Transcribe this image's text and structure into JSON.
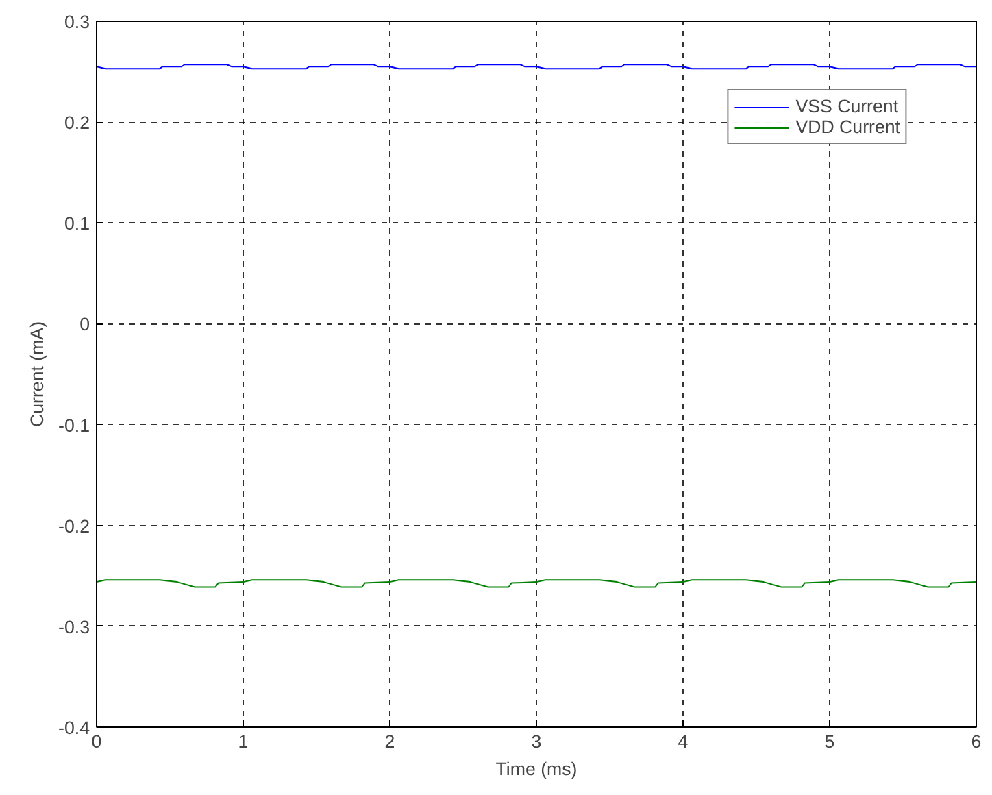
{
  "chart_data": {
    "type": "line",
    "xlabel": "Time (ms)",
    "ylabel": "Current (mA)",
    "xlim": [
      0,
      6
    ],
    "ylim": [
      -0.4,
      0.3
    ],
    "xticks": [
      0,
      1,
      2,
      3,
      4,
      5,
      6
    ],
    "yticks": [
      -0.4,
      -0.3,
      -0.2,
      -0.1,
      0,
      0.1,
      0.2,
      0.3
    ],
    "grid": true,
    "legend": "top right",
    "line_style": "solid",
    "series": [
      {
        "name": "VSS Current",
        "color": "#0000ff",
        "x": [
          0,
          0.06,
          0.43,
          0.45,
          0.58,
          0.6,
          0.89,
          0.92,
          1,
          1.06,
          1.43,
          1.45,
          1.58,
          1.6,
          1.89,
          1.92,
          2,
          2.06,
          2.43,
          2.45,
          2.58,
          2.6,
          2.89,
          2.92,
          3,
          3.06,
          3.43,
          3.45,
          3.58,
          3.6,
          3.89,
          3.92,
          4,
          4.06,
          4.43,
          4.45,
          4.58,
          4.6,
          4.89,
          4.92,
          5,
          5.06,
          5.43,
          5.45,
          5.58,
          5.6,
          5.89,
          5.92,
          6
        ],
        "values": [
          0.255,
          0.253,
          0.253,
          0.255,
          0.255,
          0.257,
          0.257,
          0.255,
          0.255,
          0.253,
          0.253,
          0.255,
          0.255,
          0.257,
          0.257,
          0.255,
          0.255,
          0.253,
          0.253,
          0.255,
          0.255,
          0.257,
          0.257,
          0.255,
          0.255,
          0.253,
          0.253,
          0.255,
          0.255,
          0.257,
          0.257,
          0.255,
          0.255,
          0.253,
          0.253,
          0.255,
          0.255,
          0.257,
          0.257,
          0.255,
          0.255,
          0.253,
          0.253,
          0.255,
          0.255,
          0.257,
          0.257,
          0.255,
          0.255
        ]
      },
      {
        "name": "VDD Current",
        "color": "#008000",
        "x": [
          0,
          0.06,
          0.43,
          0.55,
          0.67,
          0.81,
          0.83,
          1,
          1.06,
          1.43,
          1.55,
          1.67,
          1.81,
          1.83,
          2,
          2.06,
          2.43,
          2.55,
          2.67,
          2.81,
          2.83,
          3,
          3.06,
          3.43,
          3.55,
          3.67,
          3.81,
          3.83,
          4,
          4.06,
          4.43,
          4.55,
          4.67,
          4.81,
          4.83,
          5,
          5.06,
          5.43,
          5.55,
          5.67,
          5.81,
          5.83,
          6
        ],
        "values": [
          -0.256,
          -0.254,
          -0.254,
          -0.256,
          -0.261,
          -0.261,
          -0.257,
          -0.256,
          -0.254,
          -0.254,
          -0.256,
          -0.261,
          -0.261,
          -0.257,
          -0.256,
          -0.254,
          -0.254,
          -0.256,
          -0.261,
          -0.261,
          -0.257,
          -0.256,
          -0.254,
          -0.254,
          -0.256,
          -0.261,
          -0.261,
          -0.257,
          -0.256,
          -0.254,
          -0.254,
          -0.256,
          -0.261,
          -0.261,
          -0.257,
          -0.256,
          -0.254,
          -0.254,
          -0.256,
          -0.261,
          -0.261,
          -0.257,
          -0.256
        ]
      }
    ]
  }
}
